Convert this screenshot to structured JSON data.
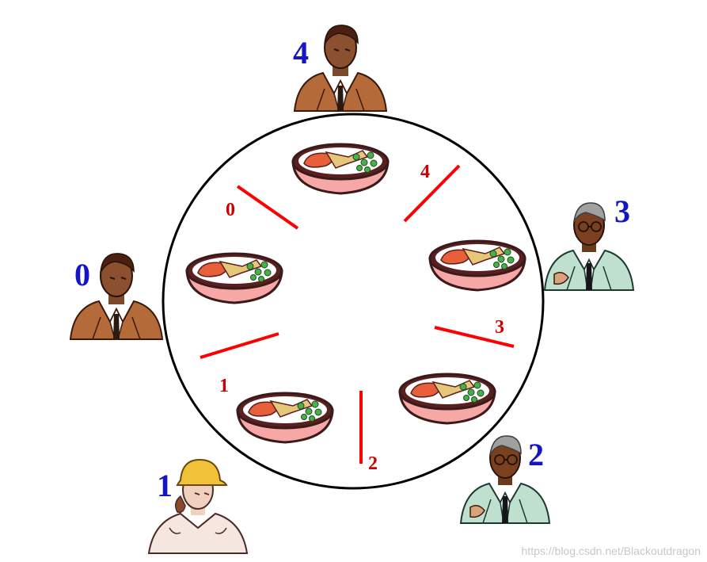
{
  "colors": {
    "table_stroke": "#000000",
    "chopstick": "#ff0000",
    "chopstick_label": "#cc0000",
    "philosopher_label": "#1515c8",
    "bowl_rim": "#f5a8a6",
    "bowl_outline": "#3a1a1a",
    "food_salmon": "#e8603a",
    "food_peas": "#49b049",
    "food_beige": "#e6c77a",
    "skin_dark": "#7a4a2a",
    "suit_brown": "#b56a3a",
    "suit_green": "#bfe0cf",
    "skin_light": "#f2d0c0",
    "hardhat": "#f2c13a"
  },
  "philosophers": [
    {
      "id": "0",
      "label": "0",
      "style": "brown-suit"
    },
    {
      "id": "1",
      "label": "1",
      "style": "worker-hardhat"
    },
    {
      "id": "2",
      "label": "2",
      "style": "green-suit-glasses"
    },
    {
      "id": "3",
      "label": "3",
      "style": "green-suit-glasses"
    },
    {
      "id": "4",
      "label": "4",
      "style": "brown-suit"
    }
  ],
  "chopsticks": [
    {
      "id": "0",
      "label": "0"
    },
    {
      "id": "1",
      "label": "1"
    },
    {
      "id": "2",
      "label": "2"
    },
    {
      "id": "3",
      "label": "3"
    },
    {
      "id": "4",
      "label": "4"
    }
  ],
  "bowls": [
    {
      "id": "top",
      "icon": "rice-bowl-icon"
    },
    {
      "id": "left",
      "icon": "rice-bowl-icon"
    },
    {
      "id": "right",
      "icon": "rice-bowl-icon"
    },
    {
      "id": "bottom-left",
      "icon": "rice-bowl-icon"
    },
    {
      "id": "bottom-right",
      "icon": "rice-bowl-icon"
    }
  ],
  "watermark": "https://blog.csdn.net/Blackoutdragon"
}
